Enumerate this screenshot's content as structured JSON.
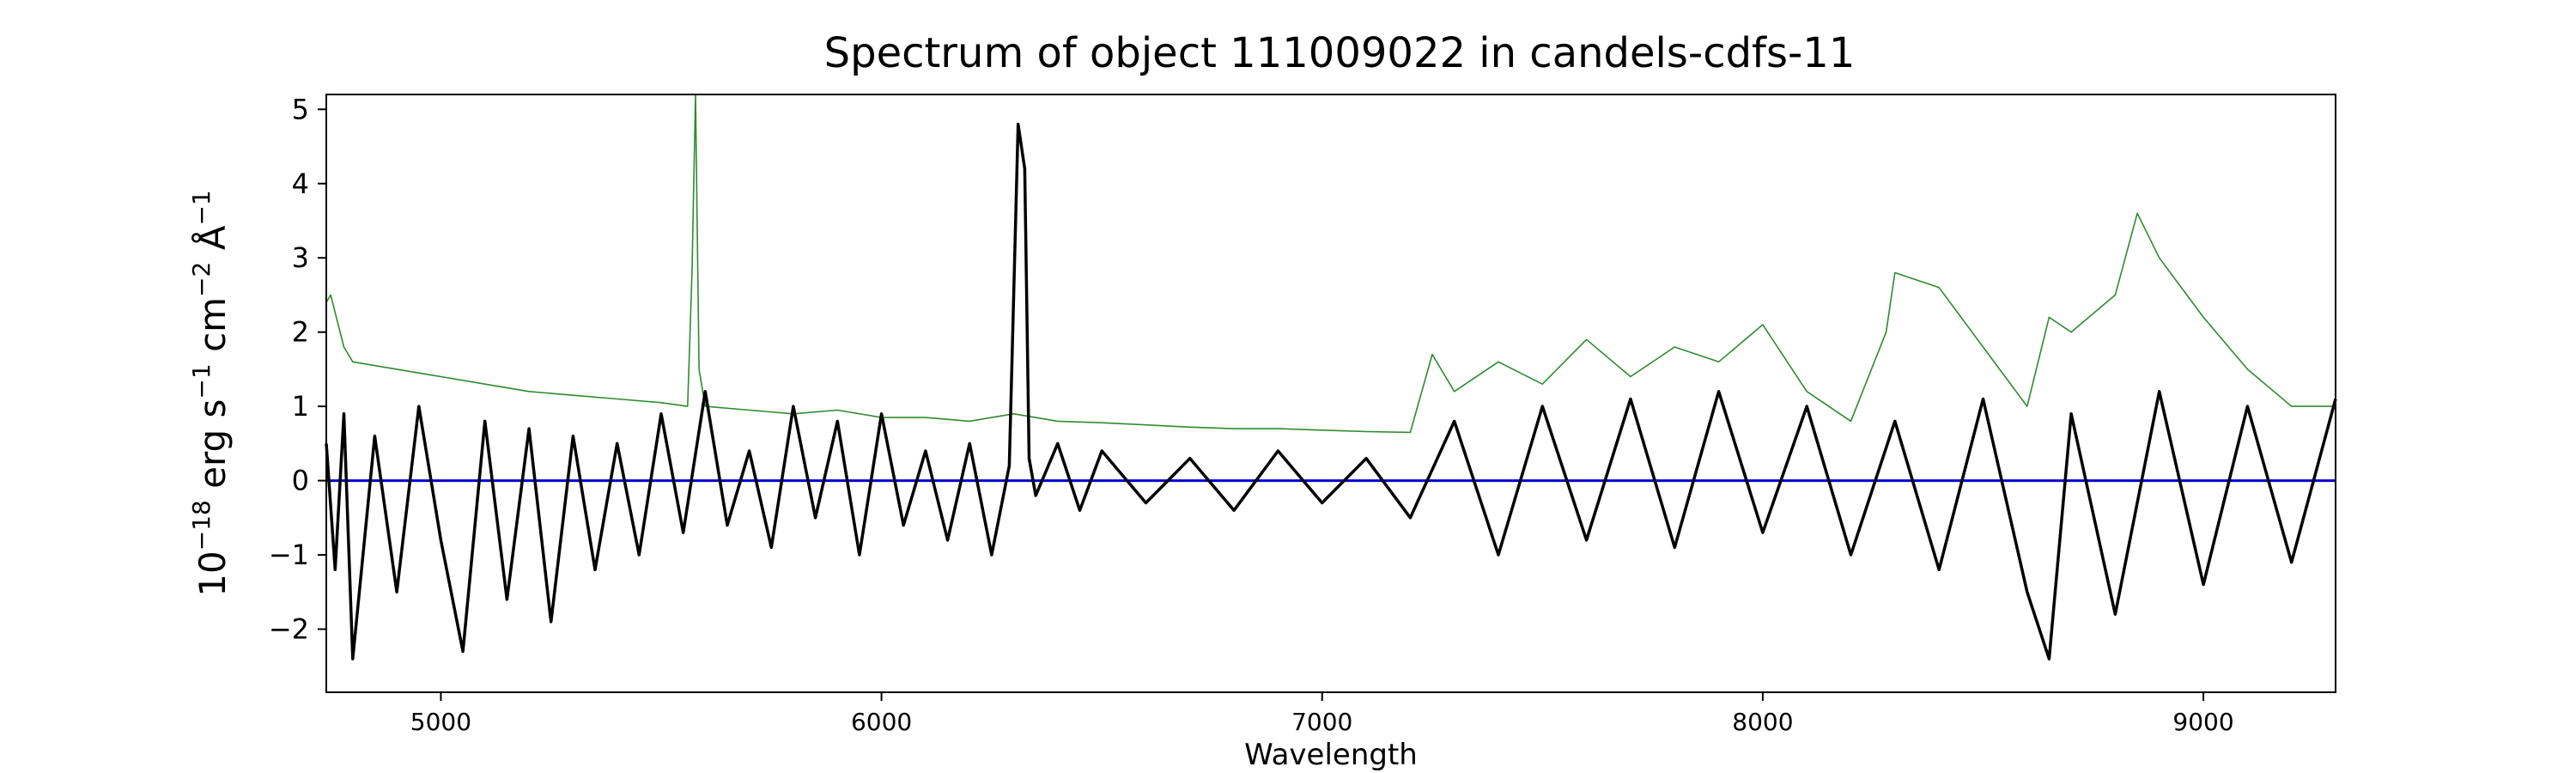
{
  "chart_data": {
    "type": "line",
    "title": "Spectrum of object 111009022 in candels-cdfs-11",
    "xlabel": "Wavelength",
    "ylabel_parts": {
      "base1": "10",
      "exp1": "−18",
      "erg": " erg s",
      "exp2": "−1",
      "cm": " cm",
      "exp3": "−2",
      "ang": " Å",
      "exp4": "−1"
    },
    "xlim": [
      4740,
      9300
    ],
    "ylim": [
      -2.85,
      5.2
    ],
    "x_ticks": [
      5000,
      6000,
      7000,
      8000,
      9000
    ],
    "y_ticks": [
      -2,
      -1,
      0,
      1,
      2,
      3,
      4,
      5
    ],
    "y_tick_labels": [
      "−2",
      "−1",
      "0",
      "1",
      "2",
      "3",
      "4",
      "5"
    ],
    "grid": false,
    "legend": "none",
    "colors": {
      "flux": "#000000",
      "noise": "#2e8b2e",
      "zero": "#0000cc"
    },
    "series": [
      {
        "role": "flux",
        "x": [
          4740,
          4760,
          4780,
          4800,
          4850,
          4900,
          4950,
          5000,
          5050,
          5100,
          5150,
          5200,
          5250,
          5300,
          5350,
          5400,
          5450,
          5500,
          5550,
          5600,
          5650,
          5700,
          5750,
          5800,
          5850,
          5900,
          5950,
          6000,
          6050,
          6100,
          6150,
          6200,
          6250,
          6290,
          6310,
          6325,
          6335,
          6350,
          6400,
          6450,
          6500,
          6600,
          6700,
          6800,
          6900,
          7000,
          7100,
          7200,
          7300,
          7400,
          7500,
          7600,
          7700,
          7800,
          7900,
          8000,
          8100,
          8200,
          8300,
          8400,
          8500,
          8600,
          8650,
          8700,
          8800,
          8900,
          9000,
          9100,
          9200,
          9300
        ],
        "y": [
          0.5,
          -1.2,
          0.9,
          -2.4,
          0.6,
          -1.5,
          1.0,
          -0.8,
          -2.3,
          0.8,
          -1.6,
          0.7,
          -1.9,
          0.6,
          -1.2,
          0.5,
          -1.0,
          0.9,
          -0.7,
          1.2,
          -0.6,
          0.4,
          -0.9,
          1.0,
          -0.5,
          0.8,
          -1.0,
          0.9,
          -0.6,
          0.4,
          -0.8,
          0.5,
          -1.0,
          0.2,
          4.8,
          4.2,
          0.3,
          -0.2,
          0.5,
          -0.4,
          0.4,
          -0.3,
          0.3,
          -0.4,
          0.4,
          -0.3,
          0.3,
          -0.5,
          0.8,
          -1.0,
          1.0,
          -0.8,
          1.1,
          -0.9,
          1.2,
          -0.7,
          1.0,
          -1.0,
          0.8,
          -1.2,
          1.1,
          -1.5,
          -2.4,
          0.9,
          -1.8,
          1.2,
          -1.4,
          1.0,
          -1.1,
          1.1
        ]
      },
      {
        "role": "noise",
        "x": [
          4740,
          4750,
          4780,
          4800,
          4900,
          5000,
          5100,
          5200,
          5300,
          5400,
          5500,
          5560,
          5570,
          5578,
          5586,
          5600,
          5700,
          5800,
          5900,
          6000,
          6100,
          6200,
          6300,
          6400,
          6500,
          6600,
          6700,
          6800,
          6900,
          7000,
          7100,
          7200,
          7250,
          7300,
          7400,
          7500,
          7600,
          7700,
          7800,
          7900,
          8000,
          8100,
          8200,
          8280,
          8300,
          8400,
          8500,
          8600,
          8650,
          8700,
          8800,
          8850,
          8900,
          9000,
          9100,
          9200,
          9300
        ],
        "y": [
          2.4,
          2.5,
          1.8,
          1.6,
          1.5,
          1.4,
          1.3,
          1.2,
          1.15,
          1.1,
          1.05,
          1.0,
          2.8,
          5.2,
          1.5,
          1.0,
          0.95,
          0.9,
          0.95,
          0.85,
          0.85,
          0.8,
          0.9,
          0.8,
          0.78,
          0.75,
          0.72,
          0.7,
          0.7,
          0.68,
          0.66,
          0.65,
          1.7,
          1.2,
          1.6,
          1.3,
          1.9,
          1.4,
          1.8,
          1.6,
          2.1,
          1.2,
          0.8,
          2.0,
          2.8,
          2.6,
          1.8,
          1.0,
          2.2,
          2.0,
          2.5,
          3.6,
          3.0,
          2.2,
          1.5,
          1.0,
          1.0
        ]
      },
      {
        "role": "zero",
        "x": [
          4740,
          9300
        ],
        "y": [
          0.0,
          0.0
        ]
      }
    ]
  }
}
